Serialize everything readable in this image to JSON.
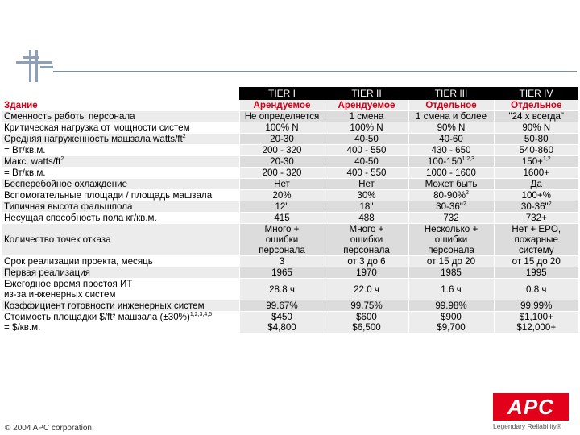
{
  "header": {
    "columns": [
      "",
      "TIER I",
      "TIER II",
      "TIER III",
      "TIER IV"
    ]
  },
  "rows": [
    {
      "label": "Здание",
      "values": [
        "Арендуемое",
        "Арендуемое",
        "Отдельное",
        "Отдельное"
      ],
      "style": "red"
    },
    {
      "label": "Сменность работы персонала",
      "values": [
        "Не определяется",
        "1 смена",
        "1 смена и более",
        "\"24 x всегда\""
      ]
    },
    {
      "label": "Критическая нагрузка от мощности систем",
      "values": [
        "100% N",
        "100% N",
        "90% N",
        "90% N"
      ]
    },
    {
      "label": "Средняя нагруженность машзала watts/ft",
      "label_sup": "2",
      "values": [
        "20-30",
        "40-50",
        "40-60",
        "50-80"
      ]
    },
    {
      "label": "= Вт/кв.м.",
      "values": [
        "200 - 320",
        "400 - 550",
        "430 - 650",
        "540-860"
      ]
    },
    {
      "label": "Макс. watts/ft",
      "label_sup": "2",
      "values": [
        "20-30",
        "40-50",
        "100-150",
        "150+"
      ],
      "value_sups": [
        "",
        "",
        "1,2,3",
        "1,2"
      ]
    },
    {
      "label": "= Вт/кв.м.",
      "values": [
        "200 - 320",
        "400 - 550",
        "1000 - 1600",
        "1600+"
      ]
    },
    {
      "label": "Бесперебойное охлаждение",
      "values": [
        "Нет",
        "Нет",
        "Может быть",
        "Да"
      ]
    },
    {
      "label": "Вспомогательные площади / площадь машзала",
      "values": [
        "20%",
        "30%",
        "80-90%",
        "100+%"
      ],
      "value_sups": [
        "",
        "",
        "2",
        ""
      ]
    },
    {
      "label": "Типичная высота фальшпола",
      "values": [
        "12\"",
        "18\"",
        "30-36\"",
        "30-36\""
      ],
      "value_sups": [
        "",
        "",
        "2",
        "2"
      ]
    },
    {
      "label": "Несущая способность пола кг/кв.м.",
      "values": [
        "415",
        "488",
        "732",
        "732+"
      ]
    },
    {
      "label": "Количество точек отказа",
      "values": [
        [
          "Много +",
          "ошибки",
          "персонала"
        ],
        [
          "Много +",
          "ошибки",
          "персонала"
        ],
        [
          "Несколько +",
          "ошибки",
          "персонала"
        ],
        [
          "Нет + EPO,",
          "пожарные",
          "систему"
        ]
      ]
    },
    {
      "label": "Срок реализации проекта, месяць",
      "values": [
        "3",
        "от 3 до 6",
        "от 15 до 20",
        "от 15 до 20"
      ]
    },
    {
      "label": "Первая реализация",
      "values": [
        "1965",
        "1970",
        "1985",
        "1995"
      ]
    },
    {
      "label": [
        "Ежегодное время простоя ИТ",
        "из-за инженерных систем"
      ],
      "values": [
        "28.8 ч",
        "22.0 ч",
        "1.6 ч",
        "0.8 ч"
      ]
    },
    {
      "label": "Коэффициент готовности инженерных систем",
      "values": [
        "99.67%",
        "99.75%",
        "99.98%",
        "99.99%"
      ]
    },
    {
      "label": [
        "Стоимость площадки $/ft² машзала (±30%)",
        "= $/кв.м."
      ],
      "label_sup": "1,2,3,4,5",
      "values": [
        [
          "$450",
          "$4,800"
        ],
        [
          "$600",
          "$6,500"
        ],
        [
          "$900",
          "$9,700"
        ],
        [
          "$1,100+",
          "$12,000+"
        ]
      ]
    }
  ],
  "footer": {
    "copyright": "© 2004 APC corporation."
  },
  "brand": {
    "name": "APC",
    "tagline": "Legendary Reliability®",
    "color": "#e2001a"
  }
}
